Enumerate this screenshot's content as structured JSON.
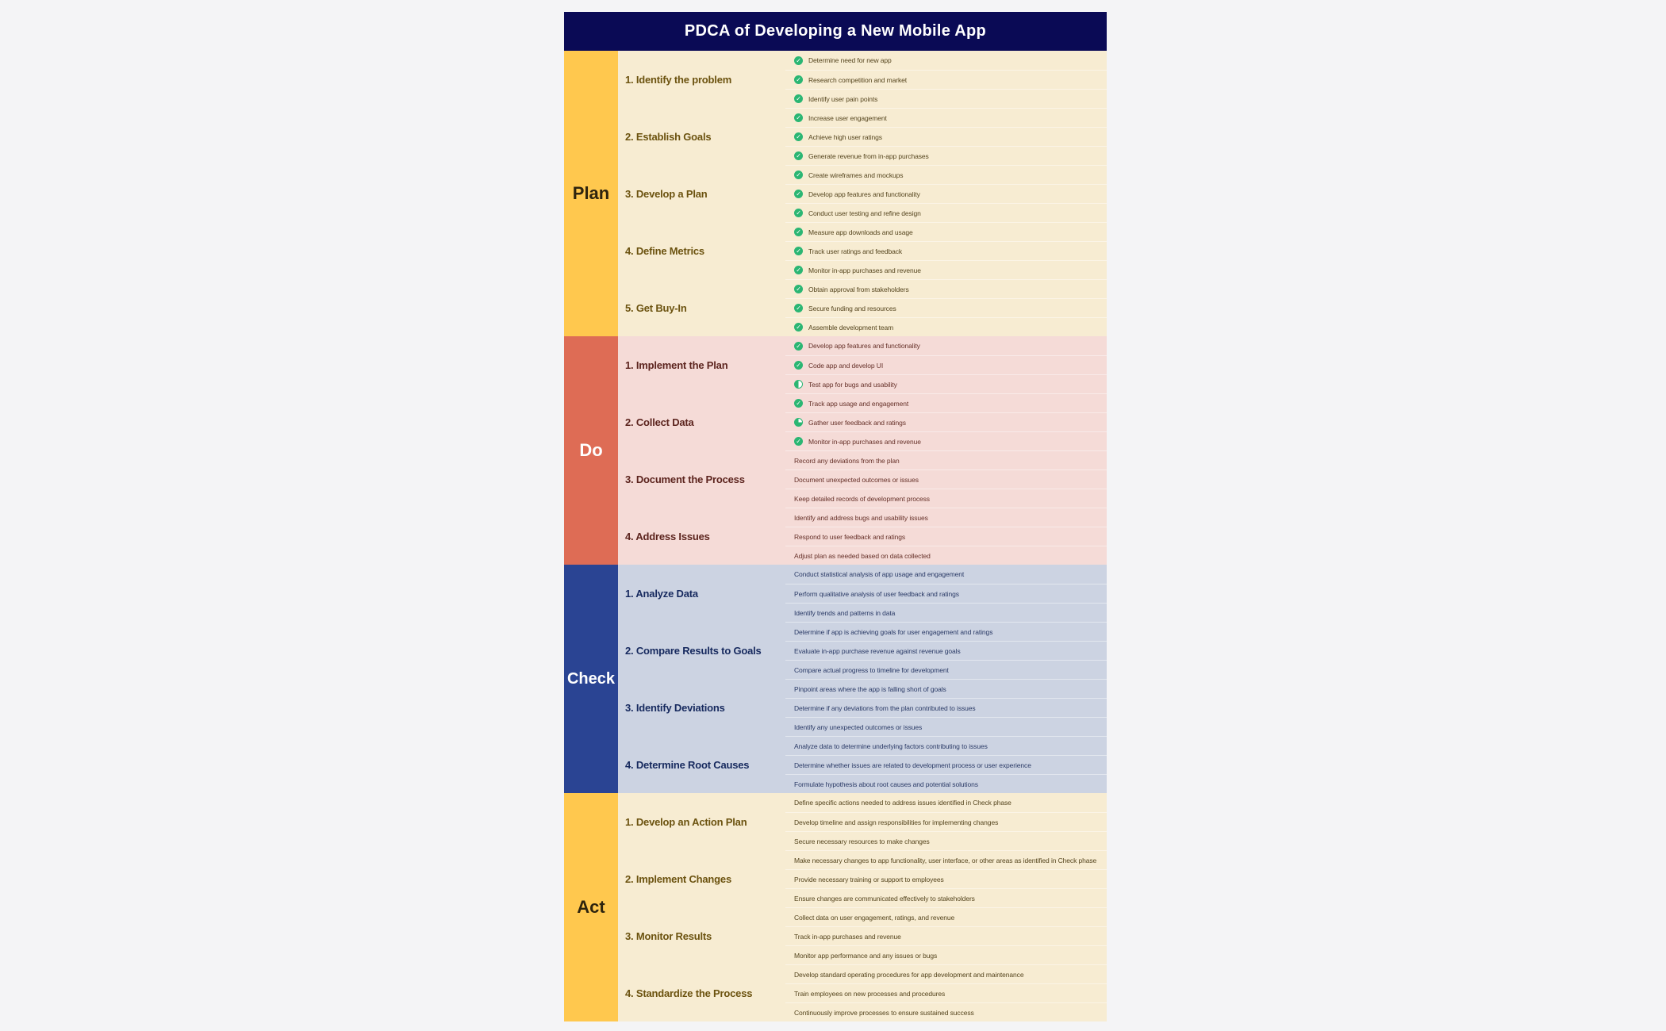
{
  "title": "PDCA of Developing a New Mobile App",
  "colors": {
    "title_bar_bg": "#0a0a55",
    "title_text": "#ffffff",
    "page_bg": "#f4f4f6",
    "icon_green": "#2bb673",
    "row_divider": "rgba(255,255,255,0.45)"
  },
  "phases": [
    {
      "name": "Plan",
      "band_color": "#ffc84e",
      "bg_color": "#f7ecd2",
      "label_color": "#2e240e",
      "step_title_color": "#6b520f",
      "item_text_color": "#55451e",
      "steps": [
        {
          "label": "1. Identify the problem",
          "items": [
            {
              "text": "Determine need for new app",
              "icon": "check"
            },
            {
              "text": "Research competition and market",
              "icon": "check"
            },
            {
              "text": "Identify user pain points",
              "icon": "check"
            }
          ]
        },
        {
          "label": "2. Establish Goals",
          "items": [
            {
              "text": "Increase user engagement",
              "icon": "check"
            },
            {
              "text": "Achieve high user ratings",
              "icon": "check"
            },
            {
              "text": "Generate revenue from in-app purchases",
              "icon": "check"
            }
          ]
        },
        {
          "label": "3. Develop a Plan",
          "items": [
            {
              "text": "Create wireframes and mockups",
              "icon": "check"
            },
            {
              "text": "Develop app features and functionality",
              "icon": "check"
            },
            {
              "text": "Conduct user testing and refine design",
              "icon": "check"
            }
          ]
        },
        {
          "label": "4. Define Metrics",
          "items": [
            {
              "text": "Measure app downloads and usage",
              "icon": "check"
            },
            {
              "text": "Track user ratings and feedback",
              "icon": "check"
            },
            {
              "text": "Monitor in-app purchases and revenue",
              "icon": "check"
            }
          ]
        },
        {
          "label": "5. Get Buy-In",
          "items": [
            {
              "text": "Obtain approval from stakeholders",
              "icon": "check"
            },
            {
              "text": "Secure funding and resources",
              "icon": "check"
            },
            {
              "text": "Assemble development team",
              "icon": "check"
            }
          ]
        }
      ]
    },
    {
      "name": "Do",
      "band_color": "#de6c55",
      "bg_color": "#f5dbd7",
      "label_color": "#ffffff",
      "step_title_color": "#5c241e",
      "item_text_color": "#663129",
      "steps": [
        {
          "label": "1. Implement the Plan",
          "items": [
            {
              "text": "Develop app features and functionality",
              "icon": "check"
            },
            {
              "text": "Code app and develop UI",
              "icon": "check"
            },
            {
              "text": "Test app for bugs and usability",
              "icon": "half"
            }
          ]
        },
        {
          "label": "2. Collect Data",
          "items": [
            {
              "text": "Track app usage and engagement",
              "icon": "check"
            },
            {
              "text": "Gather user feedback and ratings",
              "icon": "three-quarter"
            },
            {
              "text": "Monitor in-app purchases and revenue",
              "icon": "check"
            }
          ]
        },
        {
          "label": "3. Document the Process",
          "items": [
            {
              "text": "Record any deviations from the plan",
              "icon": "none"
            },
            {
              "text": "Document unexpected outcomes or issues",
              "icon": "none"
            },
            {
              "text": "Keep detailed records of development process",
              "icon": "none"
            }
          ]
        },
        {
          "label": "4. Address Issues",
          "items": [
            {
              "text": "Identify and address bugs and usability issues",
              "icon": "none"
            },
            {
              "text": "Respond to user feedback and ratings",
              "icon": "none"
            },
            {
              "text": "Adjust plan as needed based on data collected",
              "icon": "none"
            }
          ]
        }
      ]
    },
    {
      "name": "Check",
      "band_color": "#2a4493",
      "bg_color": "#ccd3e2",
      "label_color": "#ffffff",
      "step_title_color": "#16295e",
      "item_text_color": "#2a3a66",
      "steps": [
        {
          "label": "1. Analyze Data",
          "items": [
            {
              "text": "Conduct statistical analysis of app usage and engagement",
              "icon": "none"
            },
            {
              "text": "Perform qualitative analysis of user feedback and ratings",
              "icon": "none"
            },
            {
              "text": "Identify trends and patterns in data",
              "icon": "none"
            }
          ]
        },
        {
          "label": "2. Compare Results to Goals",
          "items": [
            {
              "text": "Determine if app is achieving goals for user engagement and ratings",
              "icon": "none"
            },
            {
              "text": "Evaluate in-app purchase revenue against revenue goals",
              "icon": "none"
            },
            {
              "text": "Compare actual progress to timeline for development",
              "icon": "none"
            }
          ]
        },
        {
          "label": "3. Identify Deviations",
          "items": [
            {
              "text": "Pinpoint areas where the app is falling short of goals",
              "icon": "none"
            },
            {
              "text": "Determine if any deviations from the plan contributed to issues",
              "icon": "none"
            },
            {
              "text": "Identify any unexpected outcomes or issues",
              "icon": "none"
            }
          ]
        },
        {
          "label": "4. Determine Root Causes",
          "items": [
            {
              "text": "Analyze data to determine underlying factors contributing to issues",
              "icon": "none"
            },
            {
              "text": "Determine whether issues are related to development process or user experience",
              "icon": "none"
            },
            {
              "text": "Formulate hypothesis about root causes and potential solutions",
              "icon": "none"
            }
          ]
        }
      ]
    },
    {
      "name": "Act",
      "band_color": "#ffc84e",
      "bg_color": "#f7ecd2",
      "label_color": "#2e240e",
      "step_title_color": "#6b520f",
      "item_text_color": "#55451e",
      "steps": [
        {
          "label": "1. Develop an Action Plan",
          "items": [
            {
              "text": "Define specific actions needed to address issues identified in Check phase",
              "icon": "none"
            },
            {
              "text": "Develop timeline and assign responsibilities for implementing changes",
              "icon": "none"
            },
            {
              "text": "Secure necessary resources to make changes",
              "icon": "none"
            }
          ]
        },
        {
          "label": "2. Implement Changes",
          "items": [
            {
              "text": "Make necessary changes to app functionality, user interface, or other areas as identified in Check phase",
              "icon": "none"
            },
            {
              "text": "Provide necessary training or support to employees",
              "icon": "none"
            },
            {
              "text": "Ensure changes are communicated effectively to stakeholders",
              "icon": "none"
            }
          ]
        },
        {
          "label": "3. Monitor Results",
          "items": [
            {
              "text": "Collect data on user engagement, ratings, and revenue",
              "icon": "none"
            },
            {
              "text": "Track in-app purchases and revenue",
              "icon": "none"
            },
            {
              "text": "Monitor app performance and any issues or bugs",
              "icon": "none"
            }
          ]
        },
        {
          "label": "4. Standardize the Process",
          "items": [
            {
              "text": "Develop standard operating procedures for app development and maintenance",
              "icon": "none"
            },
            {
              "text": "Train employees on new processes and procedures",
              "icon": "none"
            },
            {
              "text": "Continuously improve processes to ensure sustained success",
              "icon": "none"
            }
          ]
        }
      ]
    }
  ]
}
